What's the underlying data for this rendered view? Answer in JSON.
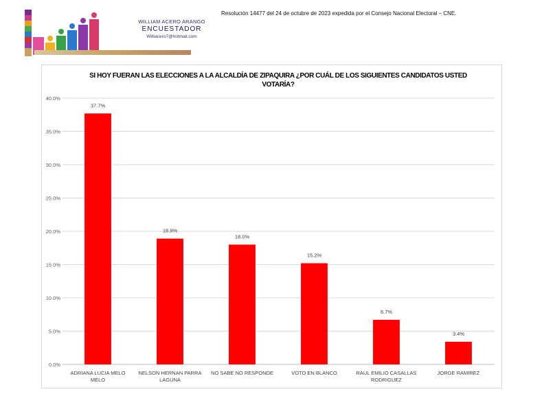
{
  "header": {
    "resolution_text": "Resolución 14477 del 24 de octubre de 2023 expedida por el Consejo Nacional Electoral – CNE.",
    "logo": {
      "name": "WILLIAM ACERO ARANGO",
      "role": "ENCUESTADOR",
      "email": "Williacero7@hotmail.com"
    }
  },
  "chart_data": {
    "type": "bar",
    "title": "SI HOY FUERAN LAS ELECCIONES A LA ALCALDÍA DE ZIPAQUIRA ¿POR CUÁL DE LOS SIGUIENTES CANDIDATOS USTED VOTARÍA?",
    "categories": [
      [
        "ADRIANA LUCIA MELO",
        "MELO"
      ],
      [
        "NELSON HERNAN PARRA",
        "LAGUNA"
      ],
      [
        "NO SABE NO RESPONDE"
      ],
      [
        "VOTO EN BLANCO"
      ],
      [
        "RAUL EMILIO CASALLAS",
        "RODRIGUEZ"
      ],
      [
        "JORGE RAMIREZ"
      ]
    ],
    "values": [
      37.7,
      18.9,
      18.0,
      15.2,
      6.7,
      3.4
    ],
    "data_labels": [
      "37.7%",
      "18.9%",
      "18.0%",
      "15.2%",
      "6.7%",
      "3.4%"
    ],
    "ylim": [
      0,
      40
    ],
    "yticks": [
      0,
      5,
      10,
      15,
      20,
      25,
      30,
      35,
      40
    ],
    "ytick_labels": [
      "0.0%",
      "5.0%",
      "10.0%",
      "15.0%",
      "20.0%",
      "25.0%",
      "30.0%",
      "35.0%",
      "40.0%"
    ],
    "xlabel": "",
    "ylabel": "",
    "grid": true,
    "bar_color": "#ff0000",
    "grid_color": "#d9d9d9"
  }
}
